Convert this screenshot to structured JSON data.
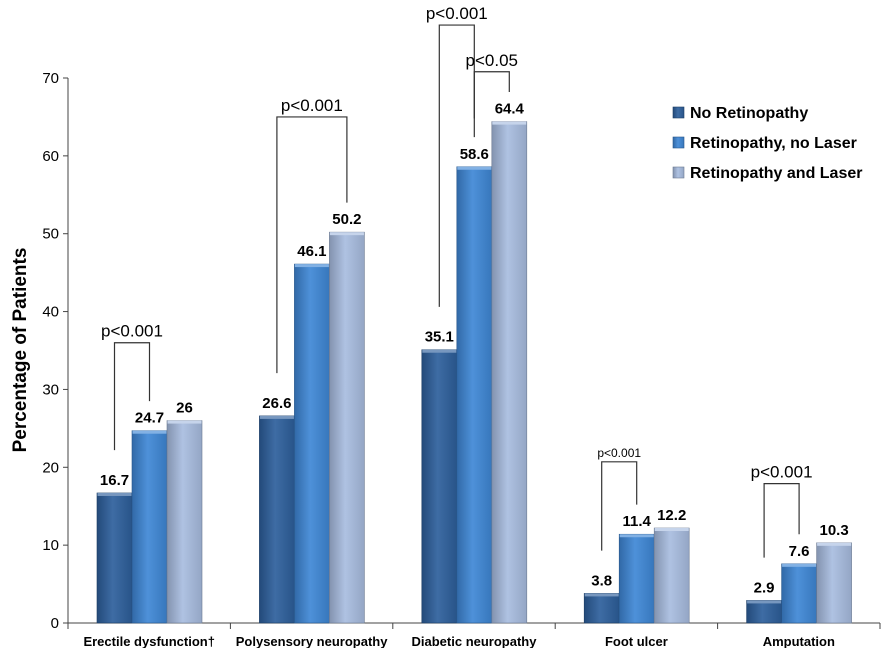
{
  "colors": {
    "no_retinopathy": "#2d5f9c",
    "retinopathy_no_laser": "#3f87d6",
    "retinopathy_and_laser": "#a8bde0",
    "axis": "#444444",
    "text": "#000000"
  },
  "chart_data": {
    "type": "bar",
    "title": "",
    "xlabel": "",
    "ylabel": "Percentage of Patients",
    "ylim": [
      0,
      70
    ],
    "yticks": [
      0,
      10,
      20,
      30,
      40,
      50,
      60,
      70
    ],
    "grid": false,
    "legend_position": "top-right",
    "categories": [
      "Erectile dysfunction†",
      "Polysensory neuropathy",
      "Diabetic neuropathy",
      "Foot ulcer",
      "Amputation"
    ],
    "series": [
      {
        "name": "No Retinopathy",
        "values": [
          16.7,
          26.6,
          35.1,
          3.8,
          2.9
        ],
        "labels": [
          "16.7",
          "26.6",
          "35.1",
          "3.8",
          "2.9"
        ]
      },
      {
        "name": "Retinopathy, no Laser",
        "values": [
          24.7,
          46.1,
          58.6,
          11.4,
          7.6
        ],
        "labels": [
          "24.7",
          "46.1",
          "58.6",
          "11.4",
          "7.6"
        ]
      },
      {
        "name": "Retinopathy  and Laser",
        "values": [
          26,
          50.2,
          64.4,
          12.2,
          10.3
        ],
        "labels": [
          "26",
          "50.2",
          "64.4",
          "12.2",
          "10.3"
        ]
      }
    ],
    "annotations": [
      {
        "text": "p<0.001",
        "category": 0,
        "from_series": 0,
        "to_series": 1,
        "level": 36,
        "size": "normal"
      },
      {
        "text": "p<0.001",
        "category": 1,
        "from_series": 0,
        "to_series": 2,
        "level": 65,
        "size": "normal"
      },
      {
        "text": "p<0.001",
        "category": 2,
        "from_series": 0,
        "to_series": 1,
        "level": 76.8,
        "size": "normal"
      },
      {
        "text": "p<0.05",
        "category": 2,
        "from_series": 1,
        "to_series": 2,
        "level": 70.8,
        "size": "normal"
      },
      {
        "text": "p<0.001",
        "category": 3,
        "from_series": 0,
        "to_series": 1,
        "level": 20.7,
        "size": "small"
      },
      {
        "text": "p<0.001",
        "category": 4,
        "from_series": 0,
        "to_series": 1,
        "level": 17.9,
        "size": "normal"
      }
    ]
  }
}
